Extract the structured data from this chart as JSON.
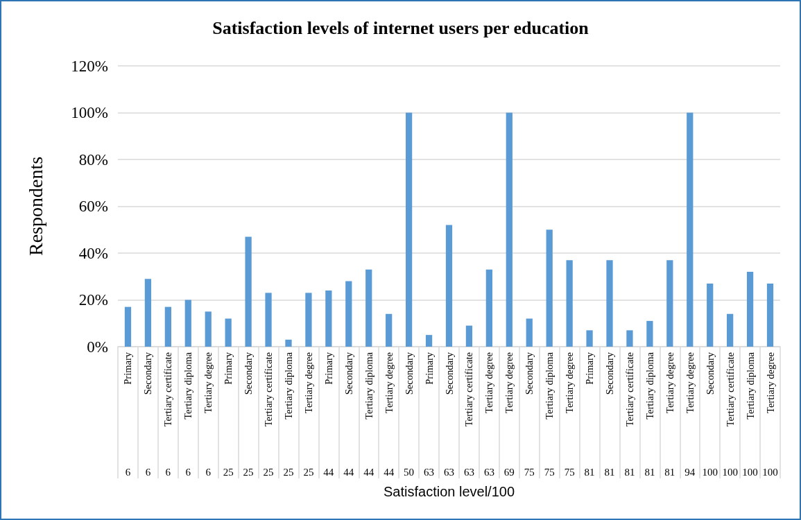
{
  "chart_data": {
    "type": "bar",
    "title": "Satisfaction levels of internet users per education",
    "xlabel": "Satisfaction level/100",
    "ylabel": "Respondents",
    "categories": [
      "Primary",
      "Secondary",
      "Tertiary certificate",
      "Tertiary diploma",
      "Tertiary degree",
      "Primary",
      "Secondary",
      "Tertiary certificate",
      "Tertiary diploma",
      "Tertiary degree",
      "Primary",
      "Secondary",
      "Tertiary diploma",
      "Tertiary degree",
      "Secondary",
      "Primary",
      "Secondary",
      "Tertiary certificate",
      "Tertiary degree",
      "Tertiary degree",
      "Secondary",
      "Tertiary diploma",
      "Tertiary degree",
      "Primary",
      "Secondary",
      "Tertiary certificate",
      "Tertiary diploma",
      "Tertiary degree",
      "Tertiary degree",
      "Secondary",
      "Tertiary certificate",
      "Tertiary diploma",
      "Tertiary degree"
    ],
    "annotations": [
      "6",
      "6",
      "6",
      "6",
      "6",
      "25",
      "25",
      "25",
      "25",
      "25",
      "44",
      "44",
      "44",
      "44",
      "50",
      "63",
      "63",
      "63",
      "63",
      "69",
      "75",
      "75",
      "75",
      "81",
      "81",
      "81",
      "81",
      "81",
      "94",
      "100",
      "100",
      "100",
      "100"
    ],
    "values": [
      17,
      29,
      17,
      20,
      15,
      12,
      47,
      23,
      3,
      23,
      24,
      28,
      33,
      14,
      100,
      5,
      52,
      9,
      33,
      100,
      12,
      50,
      37,
      7,
      37,
      7,
      11,
      37,
      100,
      27,
      14,
      32,
      27
    ],
    "color": "#5b9bd5",
    "ylim": [
      0,
      120
    ],
    "yticks": [
      {
        "value": 0,
        "label": "0%"
      },
      {
        "value": 20,
        "label": "20%"
      },
      {
        "value": 40,
        "label": "40%"
      },
      {
        "value": 60,
        "label": "60%"
      },
      {
        "value": 80,
        "label": "80%"
      },
      {
        "value": 100,
        "label": "100%"
      },
      {
        "value": 120,
        "label": "120%"
      }
    ],
    "grid": "y"
  }
}
